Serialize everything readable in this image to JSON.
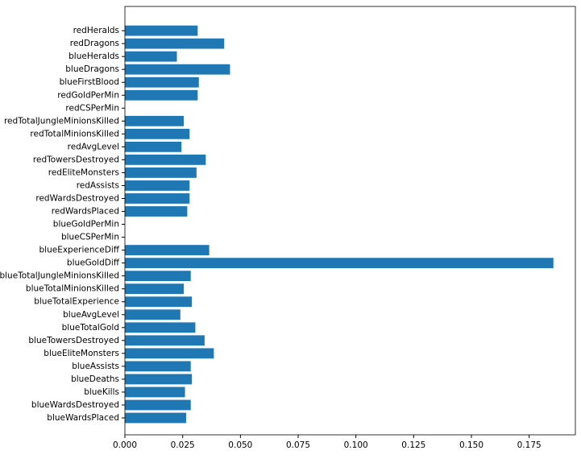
{
  "chart_data": {
    "type": "barh",
    "categories": [
      "blueWardsPlaced",
      "blueWardsDestroyed",
      "blueKills",
      "blueDeaths",
      "blueAssists",
      "blueEliteMonsters",
      "blueTowersDestroyed",
      "blueTotalGold",
      "blueAvgLevel",
      "blueTotalExperience",
      "blueTotalMinionsKilled",
      "blueTotalJungleMinionsKilled",
      "blueGoldDiff",
      "blueExperienceDiff",
      "blueCSPerMin",
      "blueGoldPerMin",
      "redWardsPlaced",
      "redWardsDestroyed",
      "redAssists",
      "redEliteMonsters",
      "redTowersDestroyed",
      "redAvgLevel",
      "redTotalMinionsKilled",
      "redTotalJungleMinionsKilled",
      "redCSPerMin",
      "redGoldPerMin",
      "blueFirstBlood",
      "blueDragons",
      "blueHeralds",
      "redDragons",
      "redHeralds"
    ],
    "values": [
      0.0265,
      0.0285,
      0.026,
      0.029,
      0.0285,
      0.0385,
      0.0345,
      0.0305,
      0.024,
      0.029,
      0.0255,
      0.0285,
      0.1855,
      0.0365,
      0,
      0,
      0.027,
      0.028,
      0.028,
      0.031,
      0.035,
      0.0245,
      0.028,
      0.0255,
      0,
      0.0315,
      0.032,
      0.0455,
      0.0225,
      0.043,
      0.0315
    ],
    "color": "#1f77b4",
    "xlim": [
      0,
      0.195
    ],
    "xticks": [
      {
        "value": 0,
        "label": "0.000"
      },
      {
        "value": 0.025,
        "label": "0.025"
      },
      {
        "value": 0.05,
        "label": "0.050"
      },
      {
        "value": 0.075,
        "label": "0.075"
      },
      {
        "value": 0.1,
        "label": "0.100"
      },
      {
        "value": 0.125,
        "label": "0.125"
      },
      {
        "value": 0.15,
        "label": "0.150"
      },
      {
        "value": 0.175,
        "label": "0.175"
      }
    ],
    "grid": false
  }
}
